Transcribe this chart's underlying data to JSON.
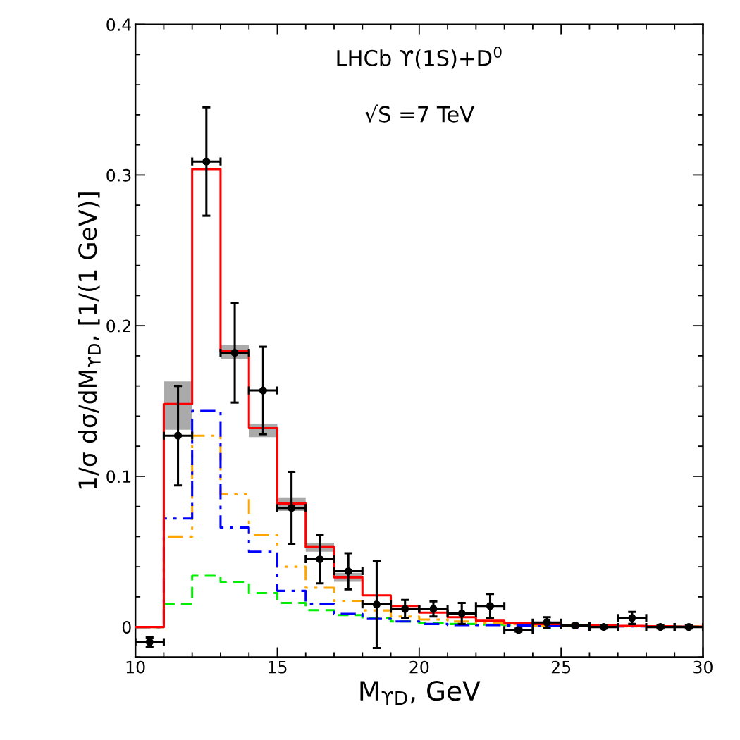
{
  "chart_data": {
    "type": "histogram",
    "title": "LHCb ϒ(1S)+D$^{0}$",
    "annotations": [
      "√S =7 TeV"
    ],
    "xlabel": "M$_{ϒD}$, GeV",
    "ylabel": "1/σ dσ/dM$_{ϒD}$, [1/(1 GeV)]",
    "bins": [
      10,
      11,
      12,
      13,
      14,
      15,
      16,
      17,
      18,
      19,
      20,
      21,
      22,
      23,
      24,
      25,
      26,
      27,
      28,
      29,
      30
    ],
    "series": [
      {
        "color": "#00ee00",
        "line_style": "dashed",
        "values": [
          0,
          0.0154,
          0.034,
          0.03,
          0.0225,
          0.016,
          0.0112,
          0.0079,
          0.0057,
          0.0037,
          0.0025,
          0.002,
          0.0016,
          0.0013,
          0.001,
          0.0008,
          0.0006,
          0.0005,
          0.0004,
          0.0003
        ]
      },
      {
        "color": "#ffa500",
        "line_style": "dashdotdot",
        "values": [
          0,
          0.06,
          0.127,
          0.088,
          0.061,
          0.04,
          0.026,
          0.0174,
          0.011,
          0.007,
          0.005,
          0.0037,
          0.0025,
          0.0018,
          0.001,
          0.0008,
          0.0006,
          0.0004,
          0.0003,
          0.0002
        ]
      },
      {
        "color": "#0000ff",
        "line_style": "dashdot",
        "values": [
          0,
          0.072,
          0.1435,
          0.066,
          0.05,
          0.024,
          0.0154,
          0.0087,
          0.0054,
          0.0037,
          0.002,
          0.0013,
          0.0012,
          0.001,
          0.0008,
          0.0006,
          0.0005,
          0.0004,
          0.0003,
          0.0002
        ]
      },
      {
        "type": "step",
        "color": "#ff0000",
        "line_style": "solid",
        "x": [
          10,
          11,
          12,
          13,
          14,
          15,
          16,
          17,
          18,
          19,
          20,
          21,
          22,
          23,
          24,
          25,
          26,
          27,
          28,
          29,
          30
        ],
        "values": [
          0,
          0.148,
          0.304,
          0.183,
          0.132,
          0.082,
          0.053,
          0.033,
          0.021,
          0.014,
          0.0095,
          0.0065,
          0.0042,
          0.0027,
          0.002,
          0.0015,
          0.0012,
          0.0008,
          0.0005,
          0.0003,
          0.0003
        ],
        "lower": [
          0,
          0.131,
          0.304,
          0.178,
          0.126,
          0.077,
          0.05,
          0.03,
          0.021,
          0.014,
          0.0095,
          0.0065,
          0.0042,
          0.0027,
          0.002,
          0.0015,
          0.0012,
          0.0008,
          0.0005,
          0.0003,
          0.0003
        ],
        "upper": [
          0,
          0.163,
          0.304,
          0.187,
          0.135,
          0.086,
          0.056,
          0.036,
          0.021,
          0.014,
          0.0095,
          0.0065,
          0.0042,
          0.0027,
          0.002,
          0.0015,
          0.0012,
          0.0008,
          0.0005,
          0.0003,
          0.0003
        ]
      },
      {
        "type": "scatter",
        "color": "#000000",
        "marker": "circle",
        "x": [
          10.5,
          11.5,
          12.5,
          13.5,
          14.5,
          15.5,
          16.5,
          17.5,
          18.5,
          19.5,
          20.5,
          21.5,
          22.5,
          23.5,
          24.5,
          25.5,
          26.5,
          27.5,
          28.5,
          29.5
        ],
        "values": [
          -0.01,
          0.127,
          0.309,
          0.182,
          0.157,
          0.079,
          0.045,
          0.037,
          0.015,
          0.012,
          0.012,
          0.009,
          0.014,
          -0.002,
          0.003,
          0.001,
          0.0,
          0.006,
          0.0,
          0.0
        ],
        "errors": [
          0.003,
          0.033,
          0.036,
          0.033,
          0.029,
          0.024,
          0.016,
          0.012,
          0.029,
          0.006,
          0.005,
          0.007,
          0.008,
          0.001,
          0.0035,
          0.001,
          0.001,
          0.004,
          0.001,
          0.001
        ],
        "xerrors": [
          0.5,
          0.5,
          0.5,
          0.5,
          0.5,
          0.5,
          0.5,
          0.5,
          0.5,
          0.5,
          0.5,
          0.5,
          0.5,
          0.5,
          0.5,
          0.5,
          0.5,
          0.5,
          0.5,
          0.5
        ]
      }
    ],
    "xlim": [
      10,
      30
    ],
    "xticks": [
      10,
      15,
      20,
      25,
      30
    ],
    "ylim": [
      -0.02,
      0.4
    ],
    "yticks": [
      0,
      0.1,
      0.2,
      0.3,
      0.4
    ],
    "grid": false
  }
}
